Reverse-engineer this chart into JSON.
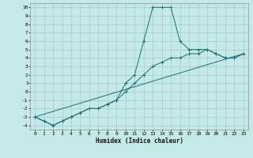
{
  "xlabel": "Humidex (Indice chaleur)",
  "ylabel": "",
  "bg_color": "#c5e8e8",
  "grid_color": "#a8d0d0",
  "line_color": "#1a7070",
  "xlim": [
    -0.5,
    23.5
  ],
  "ylim": [
    -4.5,
    10.5
  ],
  "xticks": [
    0,
    1,
    2,
    3,
    4,
    5,
    6,
    7,
    8,
    9,
    10,
    11,
    12,
    13,
    14,
    15,
    16,
    17,
    18,
    19,
    20,
    21,
    22,
    23
  ],
  "yticks": [
    -4,
    -3,
    -2,
    -1,
    0,
    1,
    2,
    3,
    4,
    5,
    6,
    7,
    8,
    9,
    10
  ],
  "line1_x": [
    0,
    1,
    2,
    3,
    4,
    5,
    6,
    7,
    8,
    9,
    10,
    11,
    12,
    13,
    14,
    15,
    16,
    17,
    18,
    19,
    20,
    21,
    22,
    23
  ],
  "line1_y": [
    -3,
    -3.5,
    -4,
    -3.5,
    -3,
    -2.5,
    -2,
    -2,
    -1.5,
    -1,
    1,
    2,
    6,
    10,
    10,
    10,
    6,
    5,
    5,
    5,
    4.5,
    4,
    4,
    4.5
  ],
  "line2_x": [
    0,
    1,
    2,
    3,
    4,
    5,
    6,
    7,
    8,
    9,
    10,
    11,
    12,
    13,
    14,
    15,
    16,
    17,
    18,
    19,
    20,
    21,
    22,
    23
  ],
  "line2_y": [
    -3,
    -3.5,
    -4,
    -3.5,
    -3,
    -2.5,
    -2,
    -2,
    -1.5,
    -1,
    0,
    1,
    2,
    3,
    3.5,
    4,
    4,
    4.5,
    4.5,
    5,
    4.5,
    4,
    4,
    4.5
  ],
  "line3_x": [
    0,
    23
  ],
  "line3_y": [
    -3,
    4.5
  ]
}
